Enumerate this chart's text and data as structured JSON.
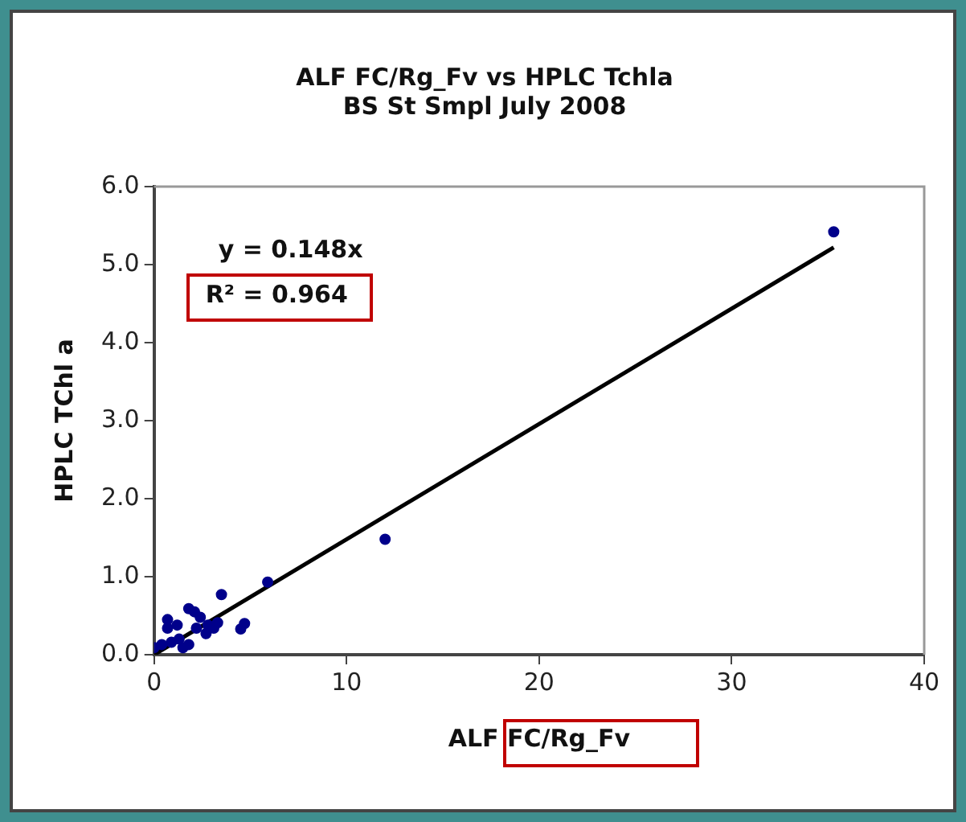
{
  "chart_data": {
    "type": "scatter",
    "title": "ALF FC/Rg_Fv vs HPLC Tchla",
    "subtitle": "BS St Smpl July 2008",
    "xlabel": "ALF FC/Rg_Fv",
    "ylabel": "HPLC TChl a",
    "xlim": [
      0,
      40
    ],
    "xticks": [
      0,
      10,
      20,
      30,
      40
    ],
    "ylim": [
      0,
      6
    ],
    "yticks": [
      {
        "value": 0,
        "label": "0.0"
      },
      {
        "value": 1,
        "label": "1.0"
      },
      {
        "value": 2,
        "label": "2.0"
      },
      {
        "value": 3,
        "label": "3.0"
      },
      {
        "value": 4,
        "label": "4.0"
      },
      {
        "value": 5,
        "label": "5.0"
      },
      {
        "value": 6,
        "label": "6.0"
      }
    ],
    "grid": false,
    "legend": false,
    "marker": "circle",
    "series": [
      {
        "color": "#00008b",
        "x": [
          35.3,
          12.0,
          5.9,
          3.5,
          4.7,
          4.5,
          0.0,
          0.7,
          0.7,
          1.2,
          1.8,
          2.1,
          2.4,
          2.8,
          3.1,
          2.7,
          1.8,
          1.3,
          0.9,
          0.4,
          1.5,
          3.3,
          2.2
        ],
        "values": [
          5.42,
          1.48,
          0.93,
          0.77,
          0.4,
          0.33,
          0.09,
          0.45,
          0.34,
          0.38,
          0.59,
          0.55,
          0.48,
          0.38,
          0.34,
          0.27,
          0.13,
          0.2,
          0.16,
          0.13,
          0.09,
          0.41,
          0.34
        ]
      },
      {
        "type": "line",
        "marker": "none",
        "color": "#000000",
        "x": [
          0,
          35.3
        ],
        "values": [
          0,
          5.22
        ]
      }
    ],
    "annotations": [
      "y = 0.148x",
      "R² = 0.964"
    ]
  }
}
